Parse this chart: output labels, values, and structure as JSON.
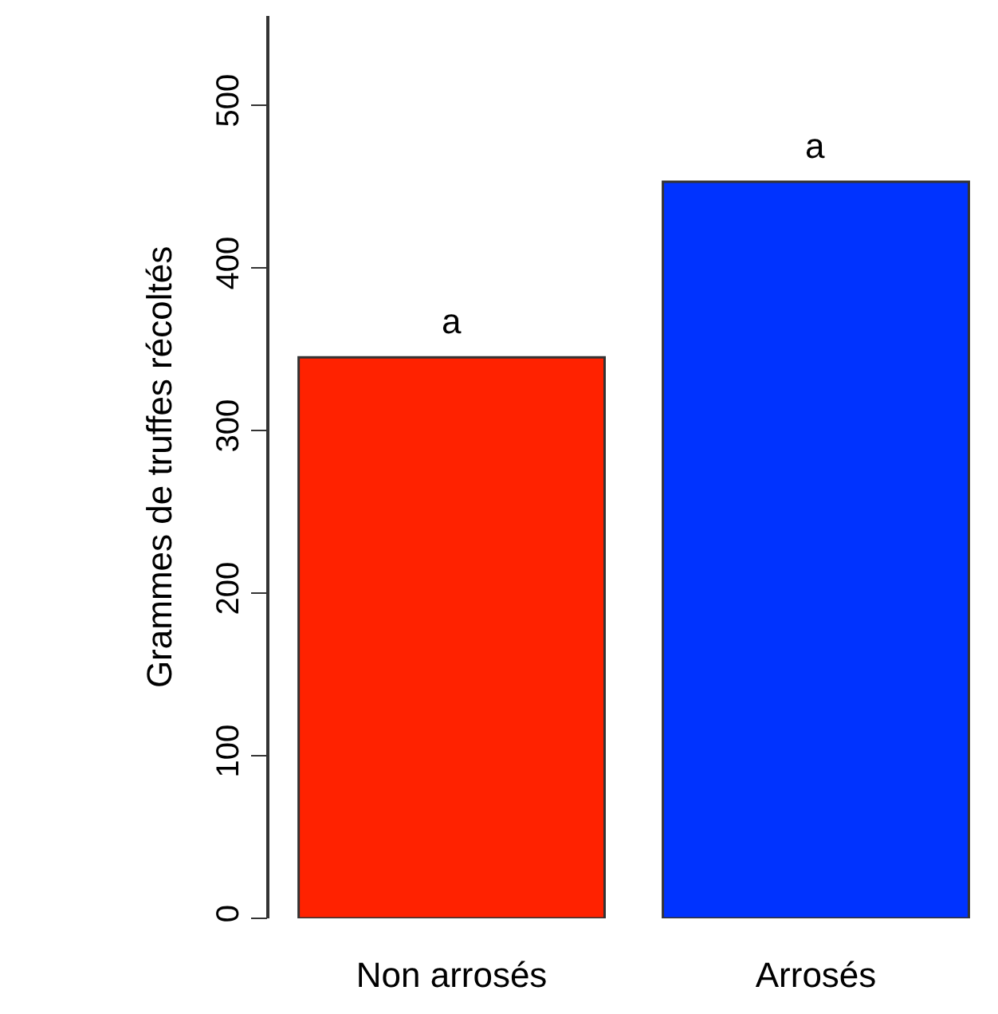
{
  "chart_data": {
    "type": "bar",
    "ylabel": "Grammes de truffes récoltés",
    "categories": [
      "Non arrosés",
      "Arrosés"
    ],
    "values": [
      345,
      453
    ],
    "colors": [
      "#ff2200",
      "#0033ff"
    ],
    "ylim": [
      0,
      555
    ],
    "yticks": [
      0,
      100,
      200,
      300,
      400,
      500
    ],
    "annotations": [
      "a",
      "a"
    ]
  }
}
